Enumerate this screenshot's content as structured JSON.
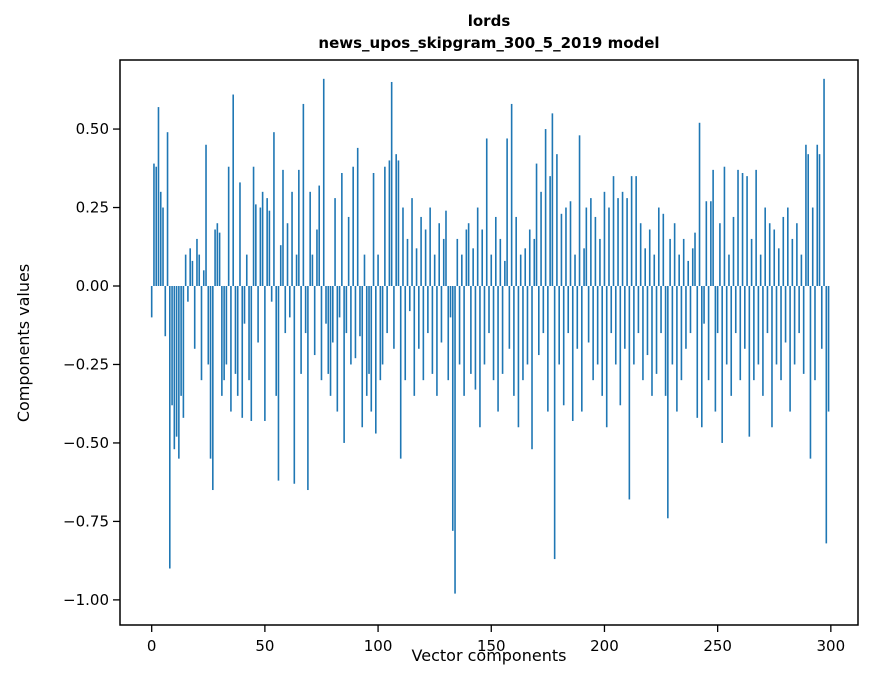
{
  "chart_data": {
    "type": "bar",
    "title": "lords",
    "subtitle": "news_upos_skipgram_300_5_2019 model",
    "xlabel": "Vector components",
    "ylabel": "Components values",
    "bar_color": "#1f77b4",
    "axis_color": "#000000",
    "background_color": "#ffffff",
    "grid": false,
    "legend": "none",
    "xlim": [
      -14,
      312
    ],
    "ylim": [
      -1.08,
      0.72
    ],
    "x_tick_values": [
      0,
      50,
      100,
      150,
      200,
      250,
      300
    ],
    "x_tick_labels": [
      "0",
      "50",
      "100",
      "150",
      "200",
      "250",
      "300"
    ],
    "y_tick_values": [
      0.5,
      0.25,
      0.0,
      -0.25,
      -0.5,
      -0.75,
      -1.0
    ],
    "y_tick_labels": [
      "0.50",
      "0.25",
      "0.00",
      "−0.25",
      "−0.50",
      "−0.75",
      "−1.00"
    ],
    "x": "index 0..299",
    "values": [
      -0.1,
      0.39,
      0.38,
      0.57,
      0.3,
      0.25,
      -0.16,
      0.49,
      -0.9,
      -0.38,
      -0.52,
      -0.48,
      -0.55,
      -0.35,
      -0.42,
      0.1,
      -0.05,
      0.12,
      0.08,
      -0.2,
      0.15,
      0.1,
      -0.3,
      0.05,
      0.45,
      -0.25,
      -0.55,
      -0.65,
      0.18,
      0.2,
      0.17,
      -0.35,
      -0.3,
      -0.25,
      0.38,
      -0.4,
      0.61,
      -0.28,
      -0.35,
      0.33,
      -0.42,
      -0.12,
      0.1,
      -0.3,
      -0.43,
      0.38,
      0.26,
      -0.18,
      0.25,
      0.3,
      -0.43,
      0.28,
      0.24,
      -0.05,
      0.49,
      -0.35,
      -0.62,
      0.13,
      0.37,
      -0.15,
      0.2,
      -0.1,
      0.3,
      -0.63,
      0.1,
      0.37,
      -0.28,
      0.58,
      -0.15,
      -0.65,
      0.3,
      0.1,
      -0.22,
      0.18,
      0.32,
      -0.3,
      0.66,
      -0.12,
      -0.28,
      -0.35,
      -0.18,
      0.28,
      -0.4,
      -0.1,
      0.36,
      -0.5,
      -0.15,
      0.22,
      -0.25,
      0.38,
      -0.23,
      0.44,
      -0.16,
      -0.45,
      0.1,
      -0.35,
      -0.28,
      -0.4,
      0.36,
      -0.47,
      0.1,
      -0.3,
      -0.25,
      0.38,
      -0.15,
      0.4,
      0.65,
      -0.2,
      0.42,
      0.4,
      -0.55,
      0.25,
      -0.3,
      0.15,
      -0.08,
      0.28,
      -0.35,
      0.12,
      -0.2,
      0.22,
      -0.3,
      0.18,
      -0.15,
      0.25,
      -0.28,
      0.1,
      -0.35,
      0.2,
      -0.18,
      0.15,
      0.24,
      -0.3,
      -0.1,
      -0.78,
      -0.98,
      0.15,
      -0.25,
      0.1,
      -0.35,
      0.18,
      0.2,
      -0.28,
      0.12,
      -0.33,
      0.25,
      -0.45,
      0.18,
      -0.25,
      0.47,
      -0.15,
      0.1,
      -0.3,
      0.22,
      -0.4,
      0.15,
      -0.28,
      0.08,
      0.47,
      -0.2,
      0.58,
      -0.35,
      0.22,
      -0.45,
      0.1,
      -0.3,
      0.12,
      -0.25,
      0.18,
      -0.52,
      0.15,
      0.39,
      -0.22,
      0.3,
      -0.15,
      0.5,
      -0.4,
      0.35,
      0.55,
      -0.87,
      0.42,
      -0.25,
      0.23,
      -0.38,
      0.25,
      -0.15,
      0.27,
      -0.43,
      0.1,
      -0.2,
      0.48,
      -0.4,
      0.12,
      0.25,
      -0.18,
      0.28,
      -0.3,
      0.22,
      -0.25,
      0.15,
      -0.35,
      0.3,
      -0.45,
      0.25,
      -0.15,
      0.35,
      -0.25,
      0.28,
      -0.38,
      0.3,
      -0.2,
      0.28,
      -0.68,
      0.35,
      -0.25,
      0.35,
      -0.15,
      0.2,
      -0.3,
      0.12,
      -0.22,
      0.18,
      -0.35,
      0.1,
      -0.28,
      0.25,
      -0.15,
      0.23,
      -0.35,
      -0.74,
      0.15,
      -0.25,
      0.2,
      -0.4,
      0.1,
      -0.3,
      0.15,
      -0.2,
      0.08,
      -0.15,
      0.12,
      0.17,
      -0.42,
      0.52,
      -0.45,
      -0.12,
      0.27,
      -0.3,
      0.27,
      0.37,
      -0.4,
      -0.15,
      0.2,
      -0.5,
      0.38,
      -0.25,
      0.1,
      -0.35,
      0.22,
      -0.15,
      0.37,
      -0.3,
      0.36,
      -0.2,
      0.35,
      -0.48,
      0.15,
      -0.3,
      0.37,
      -0.25,
      0.1,
      -0.35,
      0.25,
      -0.15,
      0.2,
      -0.45,
      0.18,
      -0.25,
      0.12,
      -0.3,
      0.22,
      -0.18,
      0.25,
      -0.4,
      0.15,
      -0.25,
      0.2,
      -0.15,
      0.1,
      -0.28,
      0.45,
      0.42,
      -0.55,
      0.25,
      -0.3,
      0.45,
      0.42,
      -0.2,
      0.66,
      -0.82,
      -0.4
    ]
  }
}
